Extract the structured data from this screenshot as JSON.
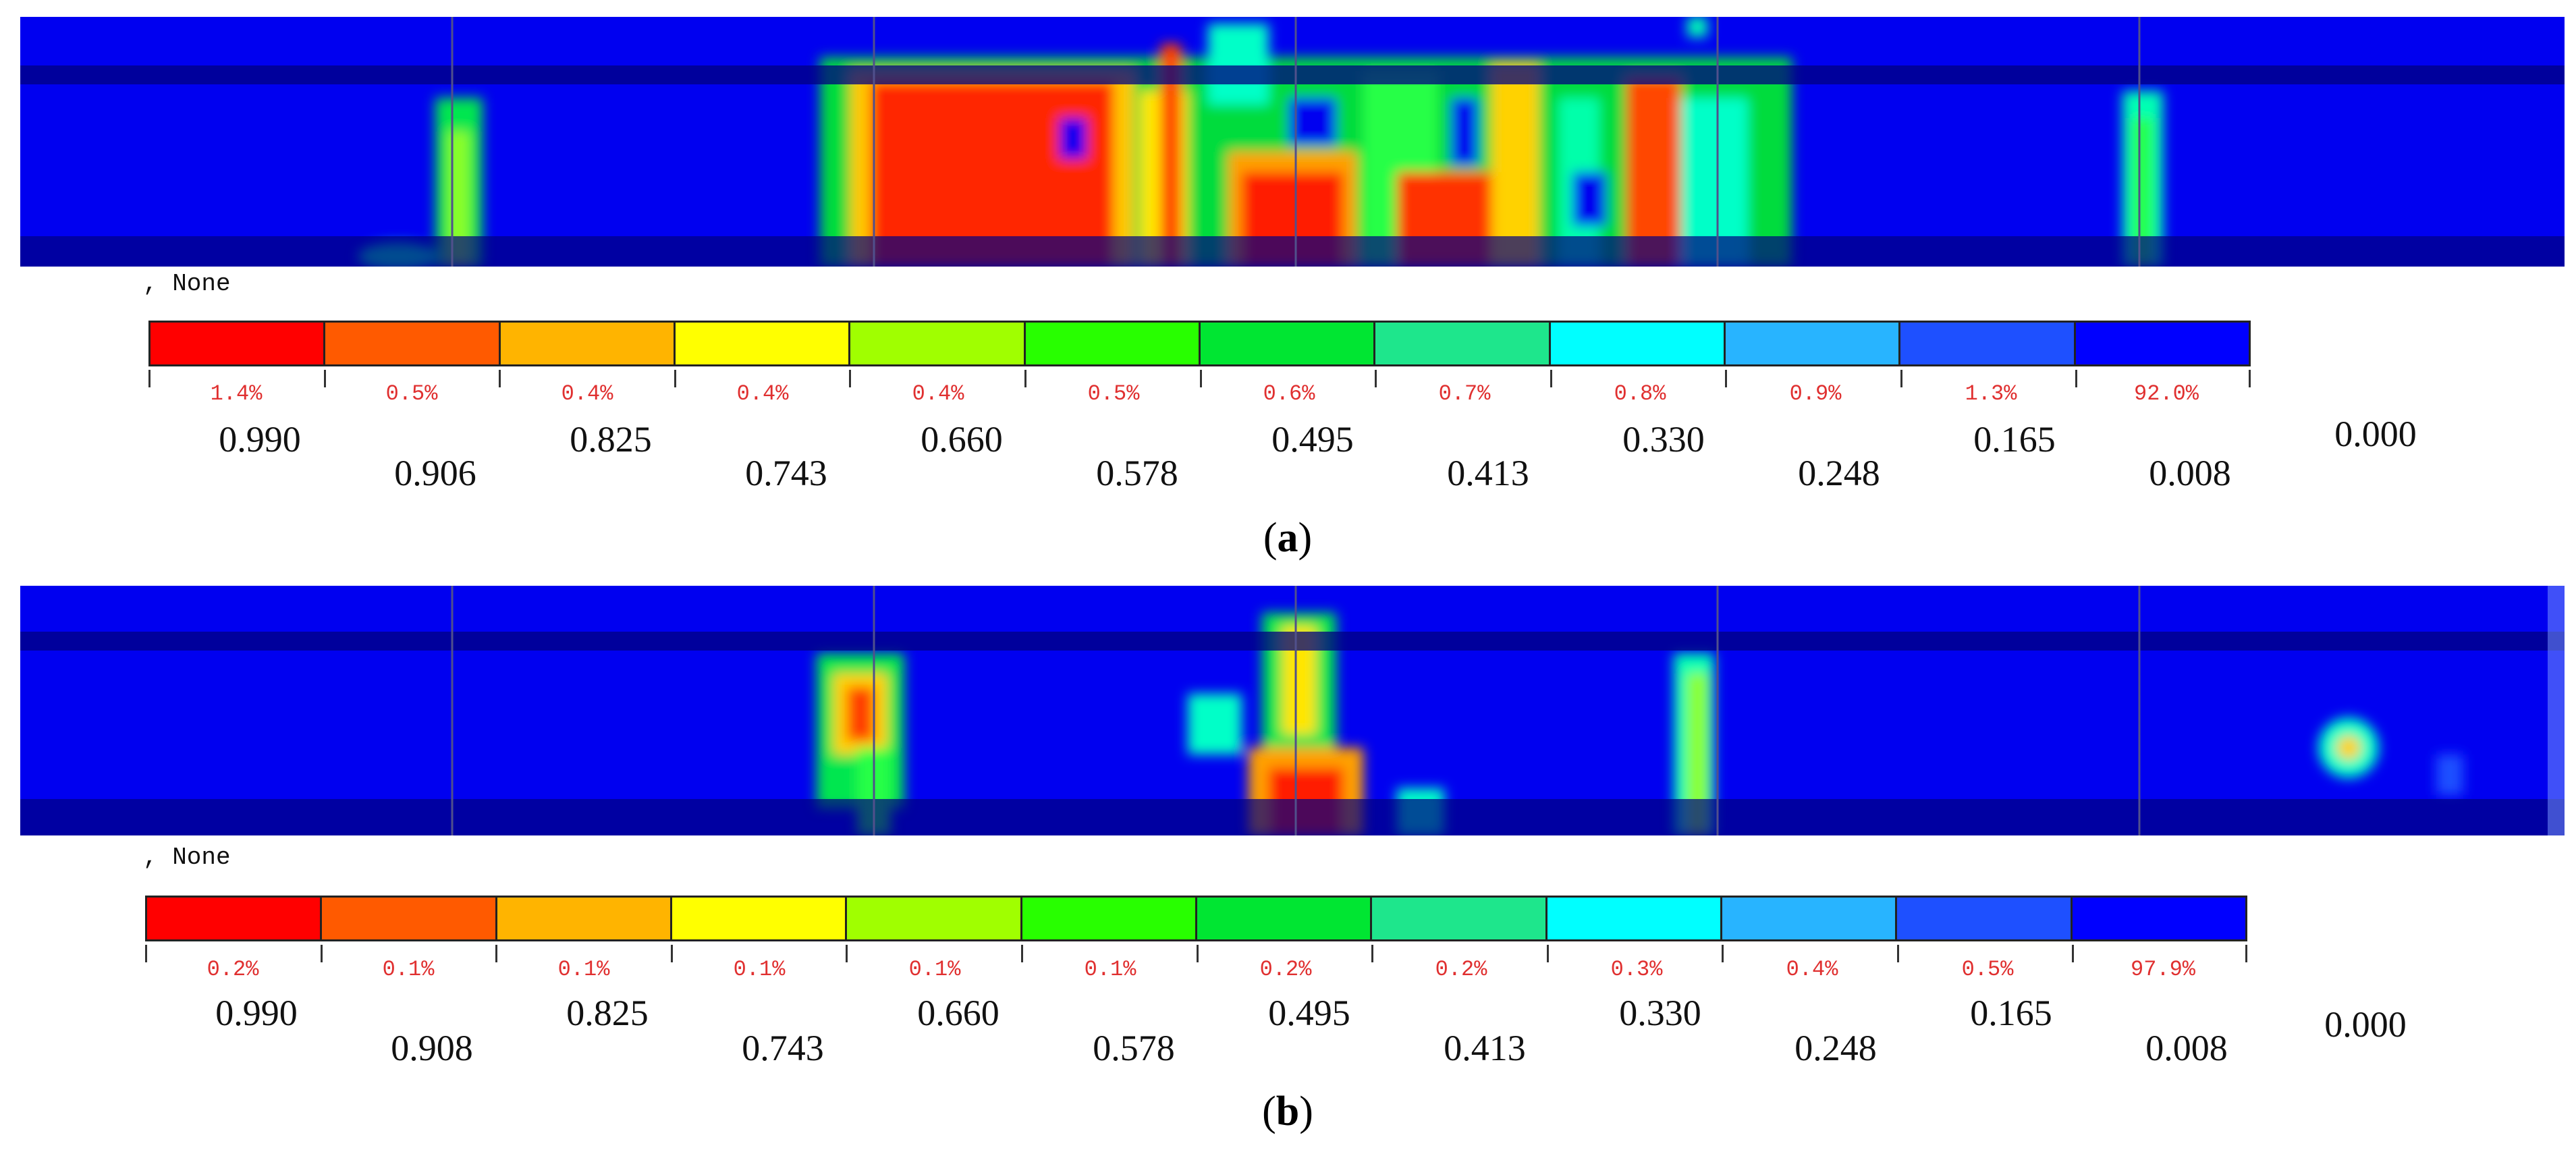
{
  "panels": [
    {
      "id": "a",
      "caption_open": "(",
      "caption_letter": "a",
      "caption_close": ")",
      "legend_title": ", None",
      "colors": [
        "#ff0000",
        "#ff5a00",
        "#ffb400",
        "#ffff00",
        "#a0ff00",
        "#28ff00",
        "#00e632",
        "#1ee68c",
        "#00ffff",
        "#28b4ff",
        "#1e50ff",
        "#0000ff"
      ],
      "percentages": [
        "1.4%",
        "0.5%",
        "0.4%",
        "0.4%",
        "0.4%",
        "0.5%",
        "0.6%",
        "0.7%",
        "0.8%",
        "0.9%",
        "1.3%",
        "92.0%"
      ],
      "values_upper": [
        "0.990",
        "0.825",
        "0.660",
        "0.495",
        "0.330",
        "0.165"
      ],
      "values_lower": [
        "0.906",
        "0.743",
        "0.578",
        "0.413",
        "0.248",
        "0.008"
      ],
      "value_end": "0.000"
    },
    {
      "id": "b",
      "caption_open": "(",
      "caption_letter": "b",
      "caption_close": ")",
      "legend_title": ", None",
      "colors": [
        "#ff0000",
        "#ff5a00",
        "#ffb400",
        "#ffff00",
        "#a0ff00",
        "#28ff00",
        "#00e632",
        "#1ee68c",
        "#00ffff",
        "#28b4ff",
        "#1e50ff",
        "#0000ff"
      ],
      "percentages": [
        "0.2%",
        "0.1%",
        "0.1%",
        "0.1%",
        "0.1%",
        "0.1%",
        "0.2%",
        "0.2%",
        "0.3%",
        "0.4%",
        "0.5%",
        "97.9%"
      ],
      "values_upper": [
        "0.990",
        "0.825",
        "0.660",
        "0.495",
        "0.330",
        "0.165"
      ],
      "values_lower": [
        "0.908",
        "0.743",
        "0.578",
        "0.413",
        "0.248",
        "0.008"
      ],
      "value_end": "0.000"
    }
  ]
}
